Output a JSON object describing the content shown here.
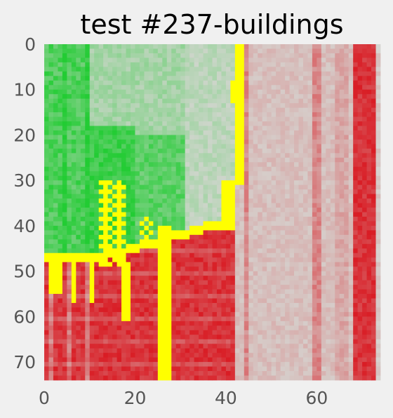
{
  "chart_data": {
    "type": "heatmap",
    "title": "test #237-buildings",
    "xlabel": "",
    "ylabel": "",
    "xlim": [
      0,
      74
    ],
    "ylim": [
      74,
      0
    ],
    "x_ticks": [
      "0",
      "20",
      "40",
      "60"
    ],
    "y_ticks": [
      "0",
      "10",
      "20",
      "30",
      "40",
      "50",
      "60",
      "70"
    ],
    "grid": false,
    "colors": {
      "background": "#f0f0f0",
      "neutral": "#d6d6d2",
      "green": "#22cc33",
      "red": "#d91c24",
      "path": "#ffff00"
    },
    "regions": {
      "green": "upper-left area above the yellow boundary",
      "red": "lower-left area below the yellow boundary, plus strong red columns at x 68-72",
      "neutral": "right half, with light red stripes",
      "path": "yellow boundary line from (42,0) down to (41,38), then west to (0,46); with a blob at x 12-18, y 30-60 and a vertical line at x 25-27 down to 74"
    }
  }
}
